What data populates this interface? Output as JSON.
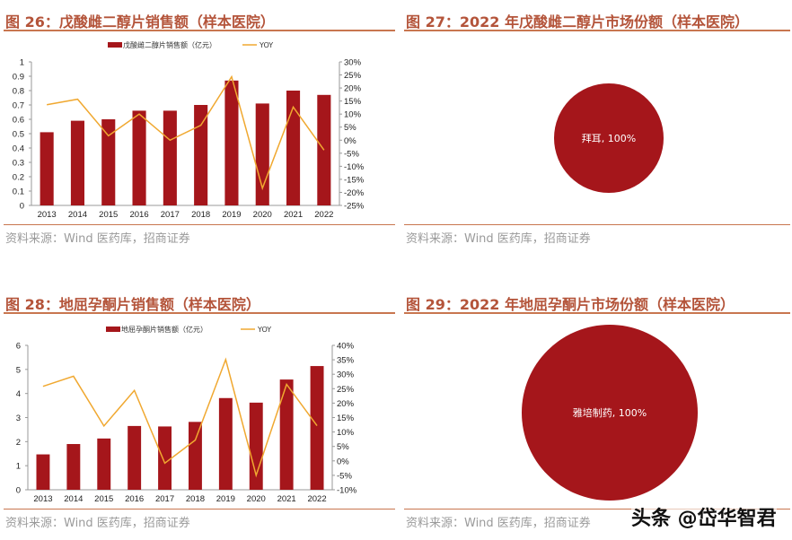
{
  "panels": [
    {
      "title": "图 26：戊酸雌二醇片销售额（样本医院）",
      "source": "资料来源：Wind 医药库，招商证券"
    },
    {
      "title": "图 27：2022 年戊酸雌二醇片市场份额（样本医院）",
      "source": "资料来源：Wind 医药库，招商证券"
    },
    {
      "title": "图 28：地屈孕酮片销售额（样本医院）",
      "source": "资料来源：Wind 医药库，招商证券"
    },
    {
      "title": "图 29：2022 年地屈孕酮片市场份额（样本医院）",
      "source": "资料来源：Wind 医药库，招商证券"
    }
  ],
  "watermark": "头条 @岱华智君",
  "colors": {
    "bar": "#a5161b",
    "line": "#f0a830",
    "title": "#b4543a",
    "pie": "#a5161b"
  },
  "chart_data": [
    {
      "type": "bar+line",
      "categories": [
        "2013",
        "2014",
        "2015",
        "2016",
        "2017",
        "2018",
        "2019",
        "2020",
        "2021",
        "2022"
      ],
      "series": [
        {
          "name": "戊酸雌二醇片销售额（亿元）",
          "type": "bar",
          "axis": "left",
          "values": [
            0.51,
            0.59,
            0.6,
            0.66,
            0.66,
            0.7,
            0.87,
            0.71,
            0.8,
            0.77
          ]
        },
        {
          "name": "YOY",
          "type": "line",
          "axis": "right",
          "values": [
            13.6,
            15.7,
            1.7,
            10.0,
            0.0,
            5.7,
            24.3,
            -18.4,
            12.7,
            -3.8
          ]
        }
      ],
      "ylim": [
        0,
        1
      ],
      "yticks": [
        "0",
        "0.1",
        "0.2",
        "0.3",
        "0.4",
        "0.5",
        "0.6",
        "0.7",
        "0.8",
        "0.9",
        "1"
      ],
      "y2lim": [
        -25,
        30
      ],
      "y2ticks": [
        "-25%",
        "-20%",
        "-15%",
        "-10%",
        "-5%",
        "0%",
        "5%",
        "10%",
        "15%",
        "20%",
        "25%",
        "30%"
      ],
      "legend": "top"
    },
    {
      "type": "pie",
      "slices": [
        {
          "label": "拜耳, 100%",
          "value": 100
        }
      ]
    },
    {
      "type": "bar+line",
      "categories": [
        "2013",
        "2014",
        "2015",
        "2016",
        "2017",
        "2018",
        "2019",
        "2020",
        "2021",
        "2022"
      ],
      "series": [
        {
          "name": "地屈孕酮片销售额（亿元）",
          "type": "bar",
          "axis": "left",
          "values": [
            1.47,
            1.9,
            2.13,
            2.65,
            2.63,
            2.82,
            3.81,
            3.62,
            4.58,
            5.14
          ]
        },
        {
          "name": "YOY",
          "type": "line",
          "axis": "right",
          "values": [
            25.8,
            29.3,
            12.1,
            24.4,
            -0.8,
            7.2,
            35.1,
            -5.0,
            26.5,
            12.2
          ]
        }
      ],
      "ylim": [
        0,
        6
      ],
      "yticks": [
        "0",
        "1",
        "2",
        "3",
        "4",
        "5",
        "6"
      ],
      "y2lim": [
        -10,
        40
      ],
      "y2ticks": [
        "-10%",
        "-5%",
        "0%",
        "5%",
        "10%",
        "15%",
        "20%",
        "25%",
        "30%",
        "35%",
        "40%"
      ],
      "legend": "top"
    },
    {
      "type": "pie",
      "slices": [
        {
          "label": "雅培制药, 100%",
          "value": 100
        }
      ]
    }
  ]
}
